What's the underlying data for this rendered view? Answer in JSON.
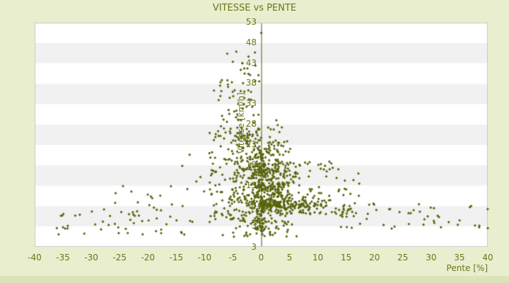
{
  "window": {
    "title": "VITESSE vs PENTE"
  },
  "chart_data": {
    "type": "scatter",
    "title": "VITESSE vs PENTE",
    "xlabel": "Pente [%]",
    "ylabel": "Vitesse [km/h]",
    "xlim": [
      -40,
      40
    ],
    "ylim": [
      -2,
      53
    ],
    "x_ticks": [
      -40,
      -35,
      -30,
      -25,
      -20,
      -15,
      -10,
      -5,
      0,
      5,
      10,
      15,
      20,
      25,
      30,
      35,
      40
    ],
    "y_ticks": [
      53,
      48,
      43,
      38,
      33,
      28,
      23,
      18,
      13,
      8,
      3
    ],
    "y_axis_bottom_label": "3",
    "grid": "alternating-horizontal-bands",
    "legend": "none",
    "marker": "diamond",
    "marker_size": 2.8,
    "vertical_axis_at_x": 0,
    "colors": {
      "background": "#e9eecf",
      "bottom_strip": "#dce3bb",
      "band_light": "#ffffff",
      "band_dark": "#f1f1f1",
      "plot_border": "#c9c9c9",
      "text": "#6e7418",
      "points": "#5a640c",
      "axis_line": "#4f5a06",
      "highlight": "#4a7fae"
    },
    "seed": 1337,
    "clusters": [
      {
        "n": 430,
        "x": {
          "d": "n",
          "m": 1.0,
          "s": 2.2,
          "lo": -5,
          "hi": 9
        },
        "y": {
          "d": "n",
          "m": 14,
          "s": 5.5,
          "lo": 3,
          "hi": 30
        }
      },
      {
        "n": 100,
        "x": {
          "d": "n",
          "m": 0,
          "s": 0.35,
          "lo": -1,
          "hi": 1
        },
        "y": {
          "d": "p",
          "lo": 2,
          "hi": 22,
          "k": 1.3
        }
      },
      {
        "n": 115,
        "x": {
          "d": "p",
          "lo": 0.3,
          "hi": 12,
          "k": 1.6
        },
        "y": {
          "d": "n",
          "m": 8.3,
          "s": 0.55,
          "lo": 6.8,
          "hi": 9.8
        }
      },
      {
        "n": 150,
        "x": {
          "d": "p",
          "lo": 3,
          "hi": 18,
          "k": 1.5
        },
        "y": {
          "d": "p",
          "lo": 6,
          "hi": 19,
          "k": 1.4
        }
      },
      {
        "n": 48,
        "x": {
          "d": "p",
          "lo": 14,
          "hi": 40,
          "k": 1.7
        },
        "y": {
          "d": "u",
          "lo": 2,
          "hi": 9
        }
      },
      {
        "n": 165,
        "x": {
          "d": "n",
          "m": -4.5,
          "s": 3.2,
          "lo": -15,
          "hi": -0.3
        },
        "y": {
          "d": "p",
          "lo": 4,
          "hi": 26,
          "k": 1.25
        }
      },
      {
        "n": 80,
        "x": {
          "d": "n",
          "m": -4,
          "s": 2.1,
          "lo": -9.5,
          "hi": 0.5
        },
        "y": {
          "d": "p",
          "lo": 24,
          "hi": 38.5,
          "k": 1.5
        }
      },
      {
        "n": 20,
        "x": {
          "d": "n",
          "m": -2.5,
          "s": 1.8,
          "lo": -7,
          "hi": 0.5
        },
        "y": {
          "d": "p",
          "lo": 38,
          "hi": 47,
          "k": 1.8
        }
      },
      {
        "n": 48,
        "x": {
          "d": "u",
          "lo": -37,
          "hi": -12
        },
        "y": {
          "d": "p",
          "lo": 1,
          "hi": 7.5,
          "k": 1.2
        }
      },
      {
        "n": 14,
        "x": {
          "d": "u",
          "lo": -26,
          "hi": -13
        },
        "y": {
          "d": "u",
          "lo": 7.5,
          "hi": 13
        }
      },
      {
        "n": 45,
        "x": {
          "d": "n",
          "m": 1,
          "s": 4,
          "lo": -9,
          "hi": 12
        },
        "y": {
          "d": "p",
          "lo": 0.5,
          "hi": 4.5,
          "k": 1.2
        }
      }
    ],
    "extra_points": [
      [
        0,
        50.5
      ],
      [
        38.5,
        3.2
      ],
      [
        40,
        2.6
      ],
      [
        30.5,
        7.5
      ],
      [
        -35,
        2.8
      ],
      [
        -34.2,
        2.5
      ]
    ],
    "highlight_point": [
      0.2,
      1.2
    ]
  }
}
